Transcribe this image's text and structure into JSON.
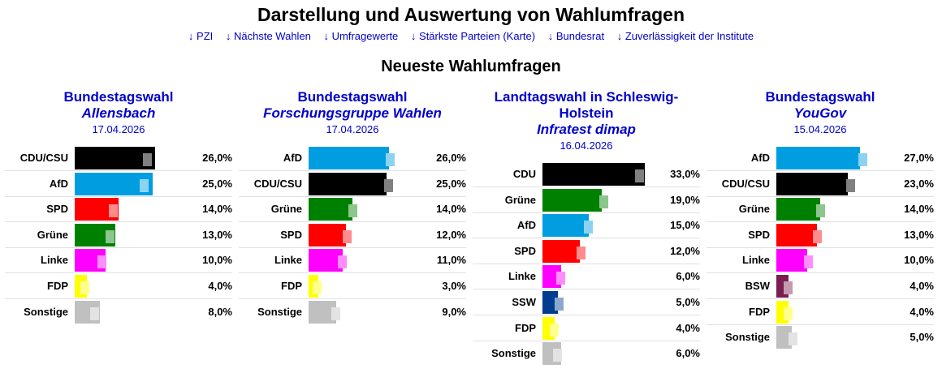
{
  "page": {
    "title": "Darstellung und Auswertung von Wahlumfragen",
    "section_title": "Neueste Wahlumfragen"
  },
  "nav": {
    "links": [
      "↓ PZI",
      "↓ Nächste Wahlen",
      "↓ Umfragewerte",
      "↓ Stärkste Parteien (Karte)",
      "↓ Bundesrat",
      "↓ Zuverlässigkeit der Institute"
    ]
  },
  "chart_data": [
    {
      "type": "bar",
      "title_lines": [
        "Bundestagswahl"
      ],
      "institute": "Allensbach",
      "date": "17.04.2026",
      "categories": [
        "CDU/CSU",
        "AfD",
        "SPD",
        "Grüne",
        "Linke",
        "FDP",
        "Sonstige"
      ],
      "values": [
        26.0,
        25.0,
        14.0,
        13.0,
        10.0,
        4.0,
        8.0
      ],
      "value_labels": [
        "26,0%",
        "25,0%",
        "14,0%",
        "13,0%",
        "10,0%",
        "4,0%",
        "8,0%"
      ],
      "previous_values": [
        24.5,
        23.5,
        13.5,
        12.5,
        10.0,
        4.5,
        7.5
      ],
      "colors": [
        "#000000",
        "#009ee0",
        "#ff0000",
        "#008000",
        "#ff00ff",
        "#ffff00",
        "#c0c0c0"
      ],
      "xlim": [
        0,
        33
      ]
    },
    {
      "type": "bar",
      "title_lines": [
        "Bundestagswahl"
      ],
      "institute": "Forschungsgruppe Wahlen",
      "date": "17.04.2026",
      "categories": [
        "AfD",
        "CDU/CSU",
        "Grüne",
        "SPD",
        "Linke",
        "FDP",
        "Sonstige"
      ],
      "values": [
        26.0,
        25.0,
        14.0,
        12.0,
        11.0,
        3.0,
        9.0
      ],
      "value_labels": [
        "26,0%",
        "25,0%",
        "14,0%",
        "12,0%",
        "11,0%",
        "3,0%",
        "9,0%"
      ],
      "previous_values": [
        27.5,
        27.0,
        15.5,
        13.5,
        12.0,
        4.0,
        10.0
      ],
      "colors": [
        "#009ee0",
        "#000000",
        "#008000",
        "#ff0000",
        "#ff00ff",
        "#ffff00",
        "#c0c0c0"
      ],
      "xlim": [
        0,
        33
      ]
    },
    {
      "type": "bar",
      "title_lines": [
        "Landtagswahl in Schleswig-",
        "Holstein"
      ],
      "institute": "Infratest dimap",
      "date": "16.04.2026",
      "categories": [
        "CDU",
        "Grüne",
        "AfD",
        "SPD",
        "Linke",
        "SSW",
        "FDP",
        "Sonstige"
      ],
      "values": [
        33.0,
        19.0,
        15.0,
        12.0,
        6.0,
        5.0,
        4.0,
        6.0
      ],
      "value_labels": [
        "33,0%",
        "19,0%",
        "15,0%",
        "12,0%",
        "6,0%",
        "5,0%",
        "4,0%",
        "6,0%"
      ],
      "previous_values": [
        32.5,
        21.0,
        16.0,
        13.5,
        7.0,
        6.5,
        5.0,
        6.0
      ],
      "colors": [
        "#000000",
        "#008000",
        "#009ee0",
        "#ff0000",
        "#ff00ff",
        "#003c8f",
        "#ffff00",
        "#c0c0c0"
      ],
      "xlim": [
        0,
        33
      ]
    },
    {
      "type": "bar",
      "title_lines": [
        "Bundestagswahl"
      ],
      "institute": "YouGov",
      "date": "15.04.2026",
      "categories": [
        "AfD",
        "CDU/CSU",
        "Grüne",
        "SPD",
        "Linke",
        "BSW",
        "FDP",
        "Sonstige"
      ],
      "values": [
        27.0,
        23.0,
        14.0,
        13.0,
        10.0,
        4.0,
        4.0,
        5.0
      ],
      "value_labels": [
        "27,0%",
        "23,0%",
        "14,0%",
        "13,0%",
        "10,0%",
        "4,0%",
        "4,0%",
        "5,0%"
      ],
      "previous_values": [
        29.0,
        25.0,
        15.5,
        14.5,
        11.5,
        5.0,
        5.0,
        6.5
      ],
      "colors": [
        "#009ee0",
        "#000000",
        "#008000",
        "#ff0000",
        "#ff00ff",
        "#7a1e4f",
        "#ffff00",
        "#c0c0c0"
      ],
      "xlim": [
        0,
        33
      ]
    }
  ]
}
